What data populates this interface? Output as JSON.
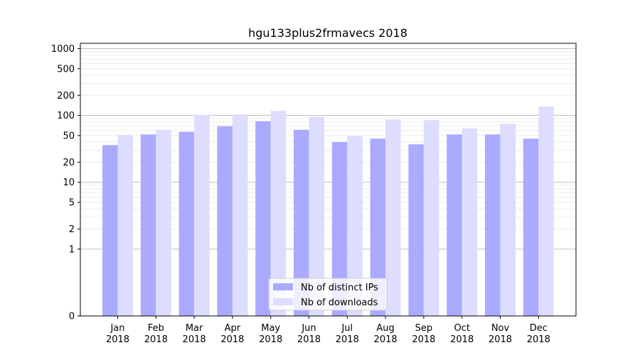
{
  "chart_data": {
    "type": "bar",
    "title": "hgu133plus2frmavecs 2018",
    "xlabel": "",
    "ylabel": "",
    "yscale": "symlog",
    "ylim": [
      0,
      1200
    ],
    "y_ticks": [
      0,
      1,
      2,
      5,
      10,
      20,
      50,
      100,
      200,
      500,
      1000
    ],
    "grid": true,
    "legend_position": "bottom-center",
    "categories": [
      [
        "Jan",
        "2018"
      ],
      [
        "Feb",
        "2018"
      ],
      [
        "Mar",
        "2018"
      ],
      [
        "Apr",
        "2018"
      ],
      [
        "May",
        "2018"
      ],
      [
        "Jun",
        "2018"
      ],
      [
        "Jul",
        "2018"
      ],
      [
        "Aug",
        "2018"
      ],
      [
        "Sep",
        "2018"
      ],
      [
        "Oct",
        "2018"
      ],
      [
        "Nov",
        "2018"
      ],
      [
        "Dec",
        "2018"
      ]
    ],
    "series": [
      {
        "name": "Nb of distinct IPs",
        "color": "#aaaaff",
        "values": [
          36,
          52,
          57,
          69,
          82,
          61,
          40,
          45,
          37,
          52,
          52,
          45
        ]
      },
      {
        "name": "Nb of downloads",
        "color": "#ddddff",
        "values": [
          51,
          61,
          102,
          104,
          117,
          95,
          49,
          87,
          85,
          64,
          75,
          136
        ]
      }
    ]
  }
}
